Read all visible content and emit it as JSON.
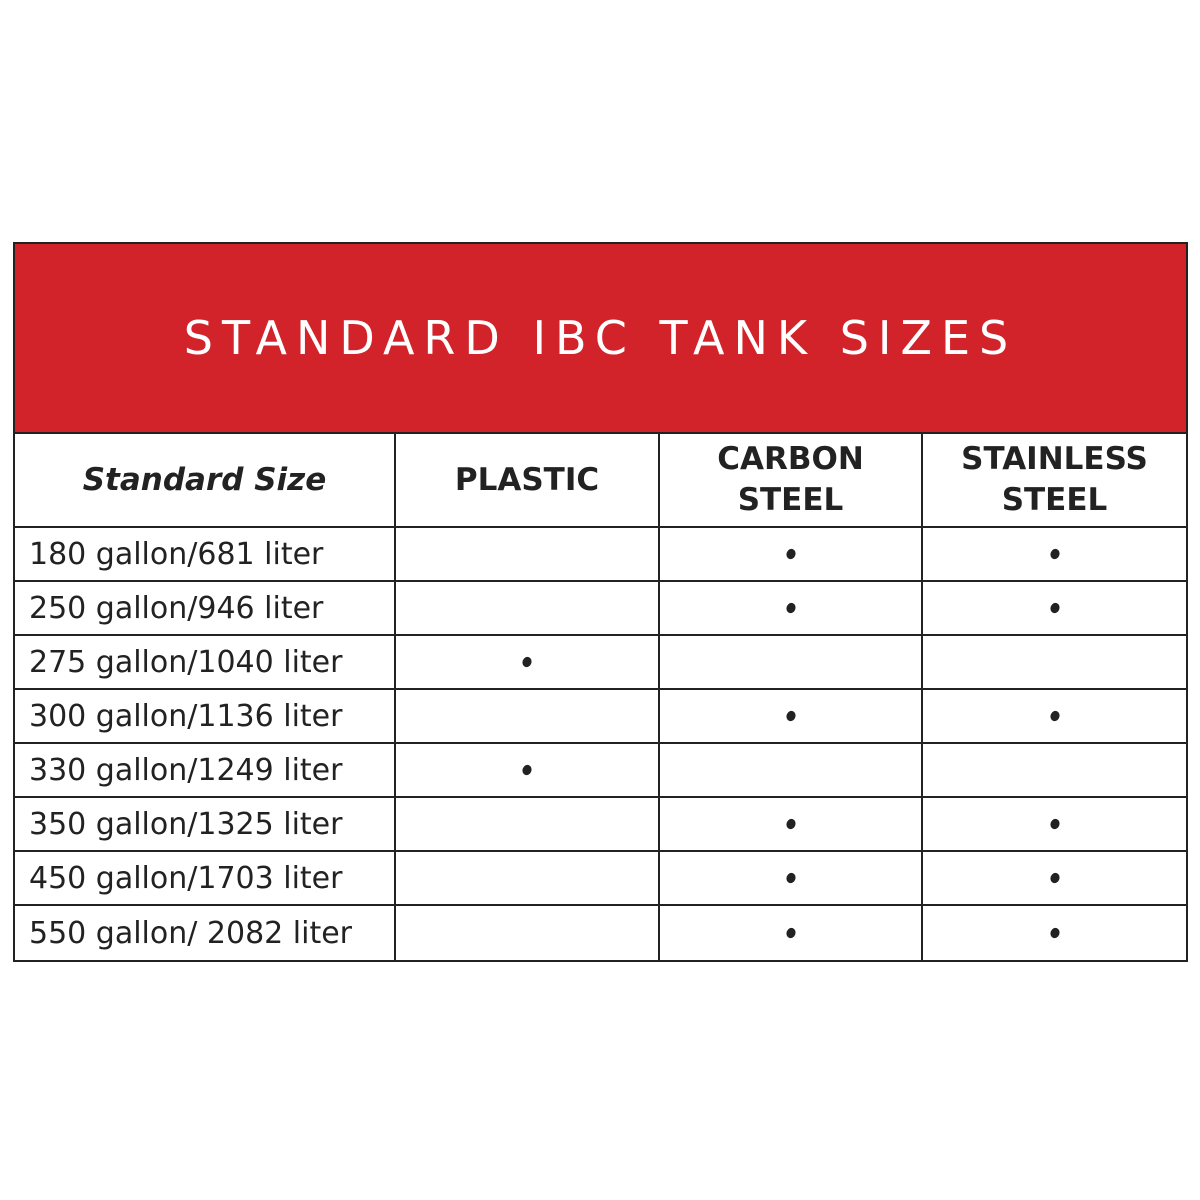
{
  "title": "STANDARD IBC TANK SIZES",
  "table": {
    "columns": [
      "Standard Size",
      "PLASTIC",
      "CARBON STEEL",
      "STAINLESS STEEL"
    ],
    "rows": [
      {
        "size": "180 gallon/681 liter",
        "available": [
          false,
          true,
          true
        ]
      },
      {
        "size": "250 gallon/946 liter",
        "available": [
          false,
          true,
          true
        ]
      },
      {
        "size": "275 gallon/1040 liter",
        "available": [
          true,
          false,
          false
        ]
      },
      {
        "size": "300 gallon/1136 liter",
        "available": [
          false,
          true,
          true
        ]
      },
      {
        "size": "330 gallon/1249 liter",
        "available": [
          true,
          false,
          false
        ]
      },
      {
        "size": "350 gallon/1325 liter",
        "available": [
          false,
          true,
          true
        ]
      },
      {
        "size": "450 gallon/1703 liter",
        "available": [
          false,
          true,
          true
        ]
      },
      {
        "size": "550 gallon/ 2082 liter",
        "available": [
          false,
          true,
          true
        ]
      }
    ]
  }
}
